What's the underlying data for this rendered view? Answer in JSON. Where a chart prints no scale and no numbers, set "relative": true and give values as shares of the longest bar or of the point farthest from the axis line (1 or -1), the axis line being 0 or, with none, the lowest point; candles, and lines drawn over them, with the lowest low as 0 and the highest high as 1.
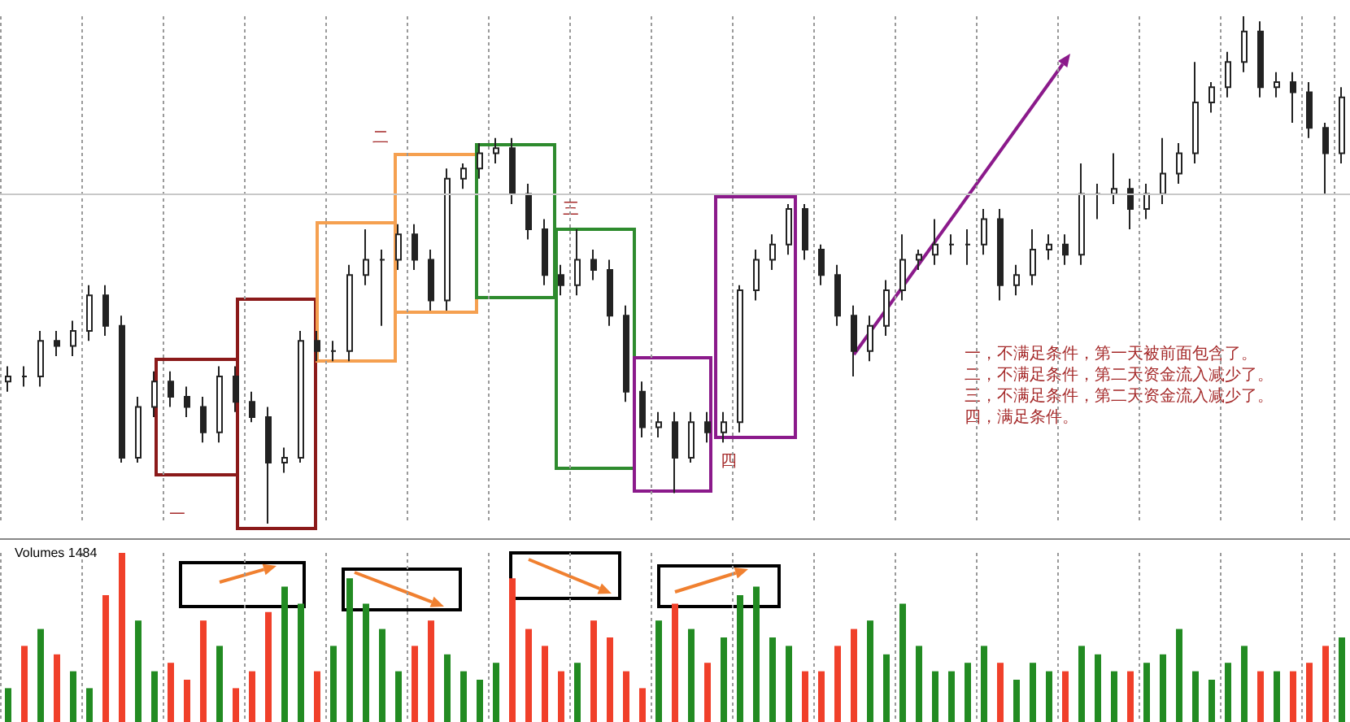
{
  "chart_data": [
    {
      "type": "candlestick",
      "relative": true,
      "color": "#222222",
      "grid": "x",
      "categories": [
        null,
        null,
        null,
        null,
        null,
        null,
        null,
        null,
        null,
        null,
        null,
        null,
        null,
        null,
        null,
        null,
        null,
        null,
        null,
        null,
        null,
        null,
        null,
        null,
        null,
        null,
        null,
        null,
        null,
        null,
        null,
        null,
        null,
        null,
        null,
        null,
        null,
        null,
        null,
        null,
        null,
        null,
        null,
        null,
        null,
        null,
        null,
        null,
        null,
        null,
        null,
        null,
        null,
        null,
        null,
        null,
        null,
        null,
        null,
        null,
        null,
        null,
        null,
        null,
        null,
        null,
        null,
        null,
        null,
        null,
        null,
        null,
        null,
        null,
        null,
        null,
        null,
        null,
        null,
        null,
        null,
        null,
        null
      ],
      "ohlc": [
        [
          0.28,
          0.31,
          0.26,
          0.29
        ],
        [
          0.29,
          0.31,
          0.27,
          0.29
        ],
        [
          0.29,
          0.38,
          0.27,
          0.36
        ],
        [
          0.36,
          0.38,
          0.33,
          0.35
        ],
        [
          0.35,
          0.4,
          0.33,
          0.38
        ],
        [
          0.38,
          0.47,
          0.36,
          0.45
        ],
        [
          0.45,
          0.47,
          0.37,
          0.39
        ],
        [
          0.39,
          0.41,
          0.12,
          0.13
        ],
        [
          0.13,
          0.25,
          0.12,
          0.23
        ],
        [
          0.23,
          0.3,
          0.21,
          0.28
        ],
        [
          0.28,
          0.3,
          0.23,
          0.25
        ],
        [
          0.25,
          0.27,
          0.21,
          0.23
        ],
        [
          0.23,
          0.25,
          0.16,
          0.18
        ],
        [
          0.18,
          0.31,
          0.16,
          0.29
        ],
        [
          0.29,
          0.31,
          0.22,
          0.24
        ],
        [
          0.24,
          0.26,
          0.2,
          0.21
        ],
        [
          0.21,
          0.23,
          0.0,
          0.12
        ],
        [
          0.12,
          0.15,
          0.1,
          0.13
        ],
        [
          0.13,
          0.38,
          0.12,
          0.36
        ],
        [
          0.36,
          0.38,
          0.32,
          0.34
        ],
        [
          0.34,
          0.36,
          0.32,
          0.34
        ],
        [
          0.34,
          0.51,
          0.32,
          0.49
        ],
        [
          0.49,
          0.58,
          0.47,
          0.52
        ],
        [
          0.52,
          0.54,
          0.39,
          0.52
        ],
        [
          0.52,
          0.59,
          0.5,
          0.57
        ],
        [
          0.57,
          0.59,
          0.5,
          0.52
        ],
        [
          0.52,
          0.54,
          0.42,
          0.44
        ],
        [
          0.44,
          0.7,
          0.42,
          0.68
        ],
        [
          0.68,
          0.71,
          0.66,
          0.7
        ],
        [
          0.7,
          0.75,
          0.68,
          0.73
        ],
        [
          0.73,
          0.76,
          0.71,
          0.74
        ],
        [
          0.74,
          0.76,
          0.63,
          0.65
        ],
        [
          0.65,
          0.67,
          0.56,
          0.58
        ],
        [
          0.58,
          0.6,
          0.47,
          0.49
        ],
        [
          0.49,
          0.51,
          0.45,
          0.47
        ],
        [
          0.47,
          0.58,
          0.45,
          0.52
        ],
        [
          0.52,
          0.54,
          0.48,
          0.5
        ],
        [
          0.5,
          0.52,
          0.39,
          0.41
        ],
        [
          0.41,
          0.43,
          0.24,
          0.26
        ],
        [
          0.26,
          0.28,
          0.17,
          0.19
        ],
        [
          0.19,
          0.22,
          0.17,
          0.2
        ],
        [
          0.2,
          0.22,
          0.06,
          0.13
        ],
        [
          0.13,
          0.22,
          0.12,
          0.2
        ],
        [
          0.2,
          0.22,
          0.16,
          0.18
        ],
        [
          0.18,
          0.22,
          0.16,
          0.2
        ],
        [
          0.2,
          0.47,
          0.18,
          0.46
        ],
        [
          0.46,
          0.54,
          0.44,
          0.52
        ],
        [
          0.52,
          0.57,
          0.5,
          0.55
        ],
        [
          0.55,
          0.63,
          0.53,
          0.62
        ],
        [
          0.62,
          0.63,
          0.52,
          0.54
        ],
        [
          0.54,
          0.55,
          0.47,
          0.49
        ],
        [
          0.49,
          0.51,
          0.39,
          0.41
        ],
        [
          0.41,
          0.43,
          0.29,
          0.34
        ],
        [
          0.34,
          0.41,
          0.32,
          0.39
        ],
        [
          0.39,
          0.48,
          0.37,
          0.46
        ],
        [
          0.46,
          0.57,
          0.44,
          0.52
        ],
        [
          0.52,
          0.54,
          0.5,
          0.53
        ],
        [
          0.53,
          0.6,
          0.51,
          0.55
        ],
        [
          0.55,
          0.57,
          0.53,
          0.55
        ],
        [
          0.55,
          0.58,
          0.51,
          0.55
        ],
        [
          0.55,
          0.62,
          0.53,
          0.6
        ],
        [
          0.6,
          0.62,
          0.44,
          0.47
        ],
        [
          0.47,
          0.51,
          0.45,
          0.49
        ],
        [
          0.49,
          0.58,
          0.47,
          0.54
        ],
        [
          0.54,
          0.57,
          0.52,
          0.55
        ],
        [
          0.55,
          0.57,
          0.51,
          0.53
        ],
        [
          0.53,
          0.71,
          0.51,
          0.65
        ],
        [
          0.65,
          0.67,
          0.6,
          0.65
        ],
        [
          0.65,
          0.73,
          0.63,
          0.66
        ],
        [
          0.66,
          0.68,
          0.58,
          0.62
        ],
        [
          0.62,
          0.67,
          0.6,
          0.65
        ],
        [
          0.65,
          0.76,
          0.63,
          0.69
        ],
        [
          0.69,
          0.75,
          0.67,
          0.73
        ],
        [
          0.73,
          0.91,
          0.71,
          0.83
        ],
        [
          0.83,
          0.87,
          0.81,
          0.86
        ],
        [
          0.86,
          0.93,
          0.84,
          0.91
        ],
        [
          0.91,
          1.0,
          0.89,
          0.97
        ],
        [
          0.97,
          0.99,
          0.84,
          0.86
        ],
        [
          0.86,
          0.89,
          0.84,
          0.87
        ],
        [
          0.87,
          0.89,
          0.79,
          0.85
        ],
        [
          0.85,
          0.87,
          0.76,
          0.78
        ],
        [
          0.78,
          0.79,
          0.65,
          0.73
        ],
        [
          0.73,
          0.86,
          0.71,
          0.84
        ]
      ],
      "ref_lines": [
        {
          "axis": "y",
          "value": 0.65,
          "color": "#c8c8c8"
        }
      ],
      "annotations": [
        "一",
        "二",
        "三",
        "四",
        "一，不满足条件，第一天被前面包含了。",
        "二，不满足条件，第二天资金流入减少了。",
        "三，不满足条件，第二天资金流入减少了。",
        "四，满足条件。"
      ]
    },
    {
      "type": "bar",
      "relative": true,
      "title": "Volumes 1484",
      "grid": "x",
      "categories": [
        null,
        null,
        null,
        null,
        null,
        null,
        null,
        null,
        null,
        null,
        null,
        null,
        null,
        null,
        null,
        null,
        null,
        null,
        null,
        null,
        null,
        null,
        null,
        null,
        null,
        null,
        null,
        null,
        null,
        null,
        null,
        null,
        null,
        null,
        null,
        null,
        null,
        null,
        null,
        null,
        null,
        null,
        null,
        null,
        null,
        null,
        null,
        null,
        null,
        null,
        null,
        null,
        null,
        null,
        null,
        null,
        null,
        null,
        null,
        null,
        null,
        null,
        null,
        null,
        null,
        null,
        null,
        null,
        null,
        null,
        null,
        null,
        null,
        null,
        null,
        null,
        null,
        null,
        null,
        null,
        null,
        null,
        null
      ],
      "values": [
        0.2,
        0.45,
        0.55,
        0.4,
        0.3,
        0.2,
        0.75,
        1.0,
        0.6,
        0.3,
        0.35,
        0.25,
        0.6,
        0.45,
        0.2,
        0.3,
        0.65,
        0.8,
        0.7,
        0.3,
        0.45,
        0.85,
        0.7,
        0.55,
        0.3,
        0.45,
        0.6,
        0.4,
        0.3,
        0.25,
        0.35,
        0.85,
        0.55,
        0.45,
        0.3,
        0.35,
        0.6,
        0.5,
        0.3,
        0.2,
        0.6,
        0.7,
        0.55,
        0.35,
        0.5,
        0.75,
        0.8,
        0.5,
        0.45,
        0.3,
        0.3,
        0.45,
        0.55,
        0.6,
        0.4,
        0.7,
        0.45,
        0.3,
        0.3,
        0.35,
        0.45,
        0.35,
        0.25,
        0.35,
        0.3,
        0.3,
        0.45,
        0.4,
        0.3,
        0.3,
        0.35,
        0.4,
        0.55,
        0.3,
        0.25,
        0.35,
        0.45,
        0.3,
        0.3,
        0.3,
        0.35,
        0.45,
        0.5
      ],
      "colors": [
        "#228b22",
        "#f0402a",
        "#228b22",
        "#f0402a",
        "#228b22",
        "#228b22",
        "#f0402a",
        "#f0402a",
        "#228b22",
        "#228b22",
        "#f0402a",
        "#f0402a",
        "#f0402a",
        "#228b22",
        "#f0402a",
        "#f0402a",
        "#f0402a",
        "#228b22",
        "#228b22",
        "#f0402a",
        "#228b22",
        "#228b22",
        "#228b22",
        "#228b22",
        "#228b22",
        "#f0402a",
        "#f0402a",
        "#228b22",
        "#228b22",
        "#228b22",
        "#228b22",
        "#f0402a",
        "#f0402a",
        "#f0402a",
        "#f0402a",
        "#228b22",
        "#f0402a",
        "#f0402a",
        "#f0402a",
        "#f0402a",
        "#228b22",
        "#f0402a",
        "#228b22",
        "#f0402a",
        "#228b22",
        "#228b22",
        "#228b22",
        "#228b22",
        "#228b22",
        "#f0402a",
        "#f0402a",
        "#f0402a",
        "#f0402a",
        "#228b22",
        "#228b22",
        "#228b22",
        "#228b22",
        "#228b22",
        "#228b22",
        "#228b22",
        "#228b22",
        "#f0402a",
        "#228b22",
        "#228b22",
        "#228b22",
        "#f0402a",
        "#228b22",
        "#228b22",
        "#228b22",
        "#f0402a",
        "#228b22",
        "#228b22",
        "#228b22",
        "#228b22",
        "#228b22",
        "#228b22",
        "#228b22",
        "#f0402a",
        "#228b22",
        "#f0402a",
        "#f0402a",
        "#f0402a",
        "#228b22"
      ]
    }
  ]
}
